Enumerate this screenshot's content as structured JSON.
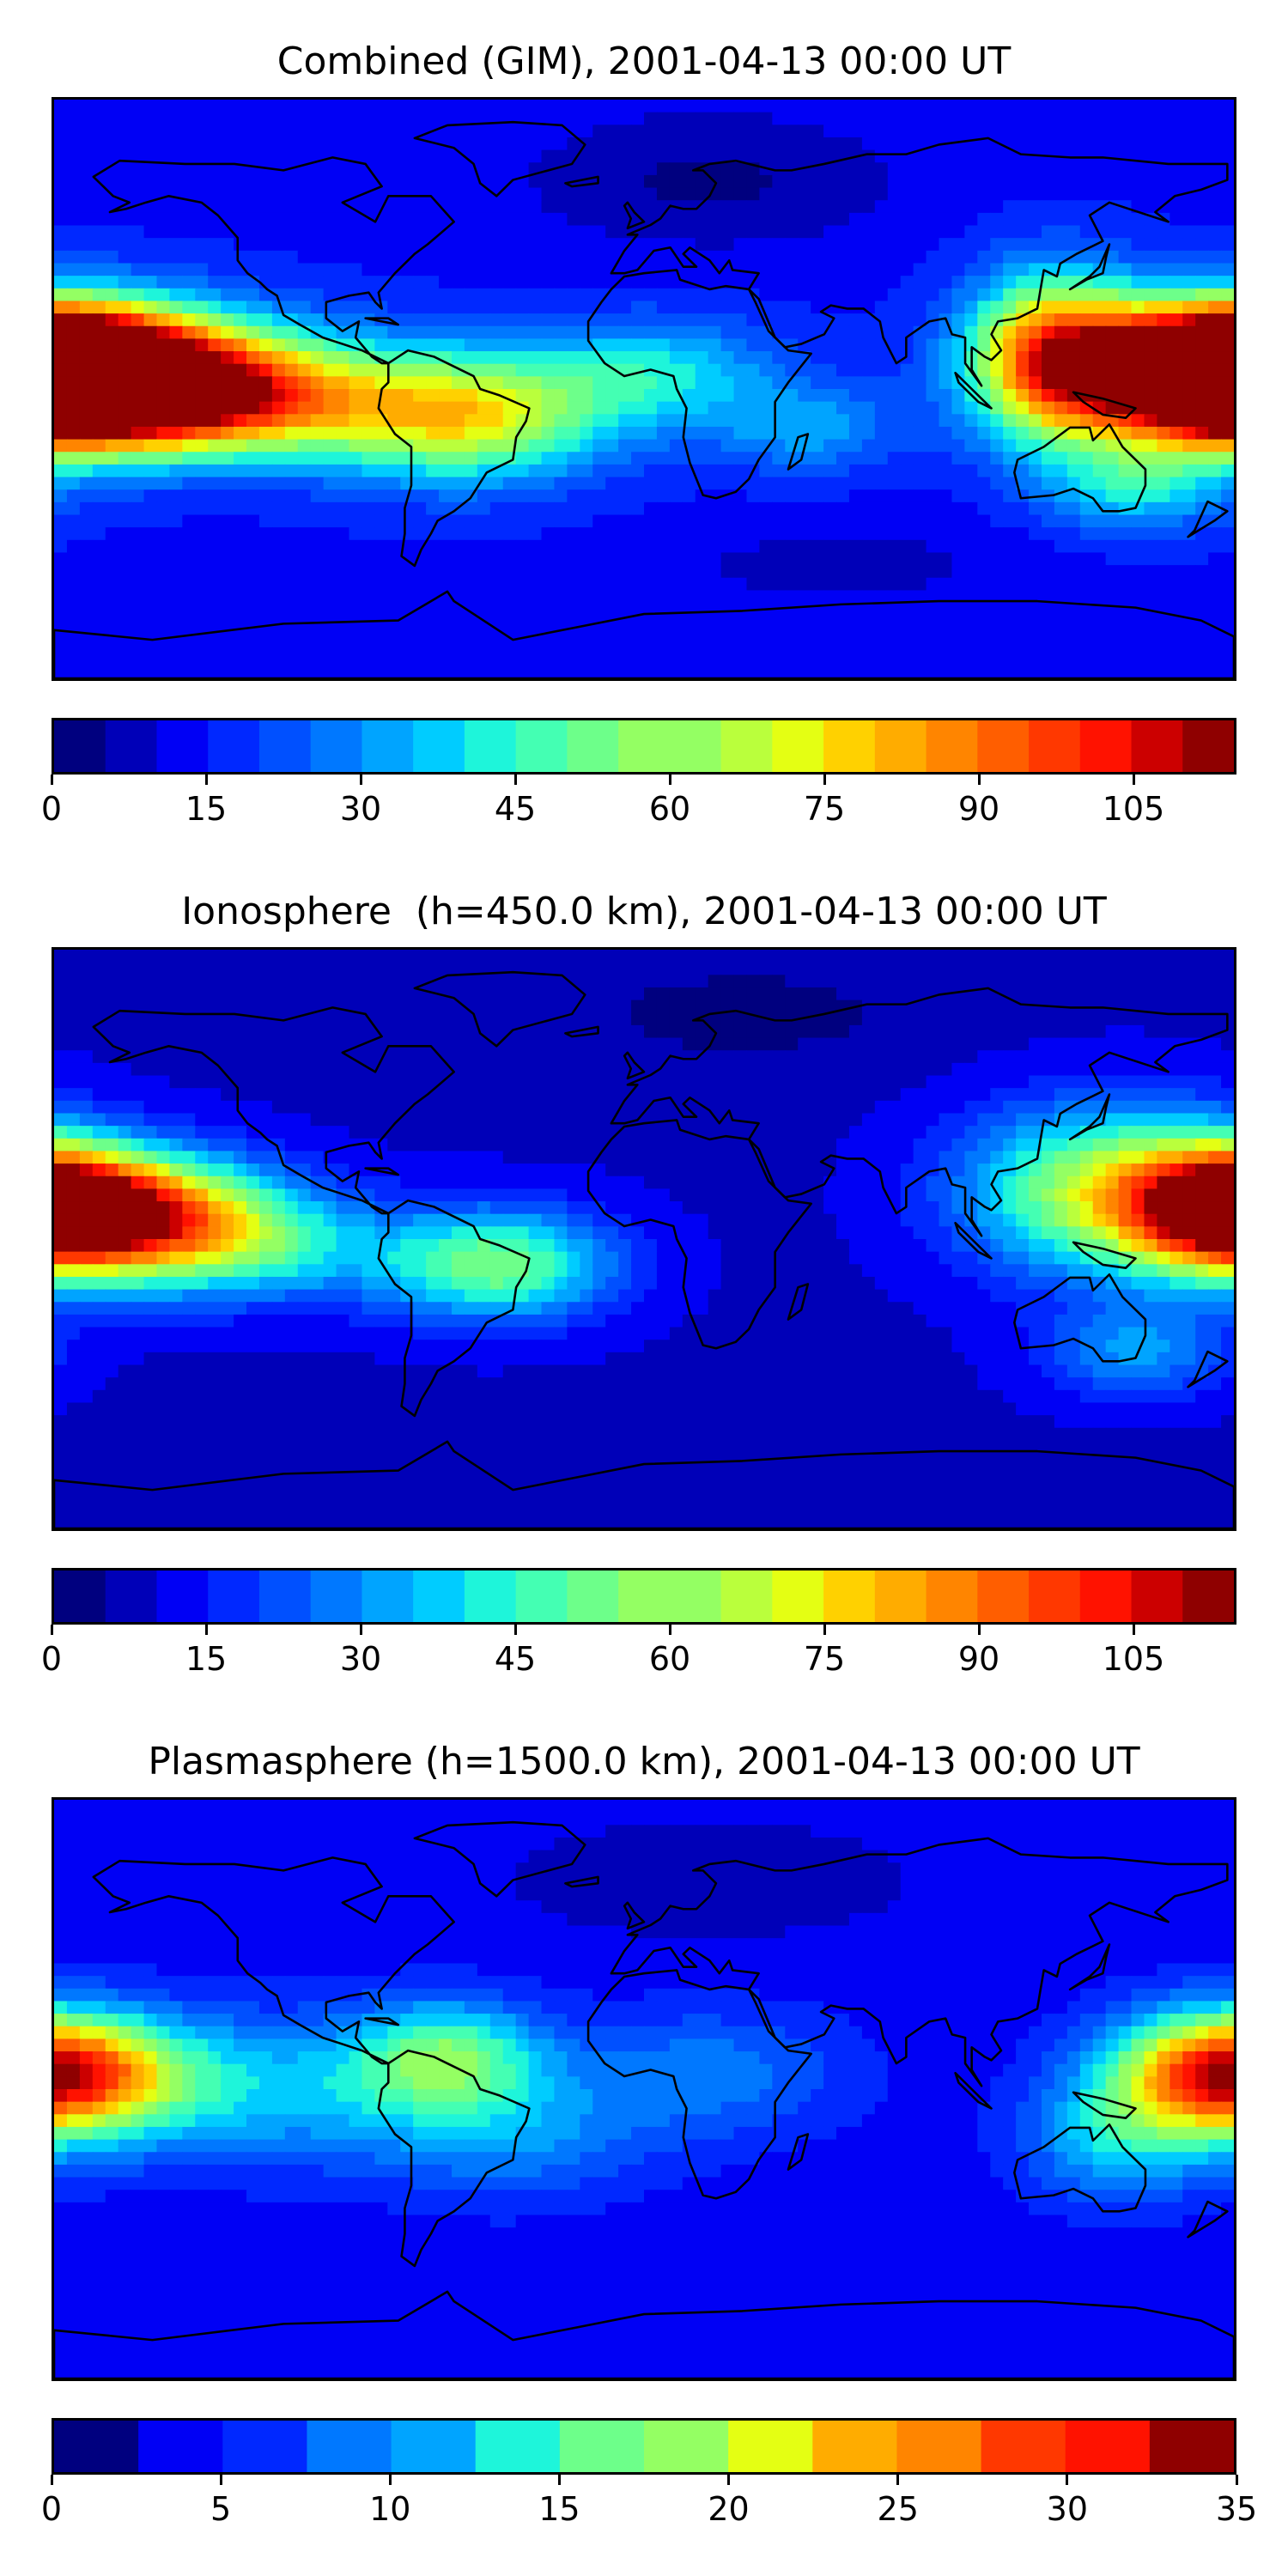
{
  "panels": [
    {
      "title": "Combined (GIM), 2001-04-13 00:00 UT",
      "colorbar": {
        "min": 0,
        "max": 115,
        "step": 5,
        "ticks": [
          "0",
          "15",
          "30",
          "45",
          "60",
          "75",
          "90",
          "105"
        ],
        "tick_values": [
          0,
          15,
          30,
          45,
          60,
          75,
          90,
          105
        ]
      },
      "field": {
        "base": 14,
        "blobs": [
          {
            "lon": -170,
            "lat": 5,
            "amp": 100,
            "slon": 40,
            "slat": 14
          },
          {
            "lon": -130,
            "lat": -4,
            "amp": 55,
            "slon": 35,
            "slat": 12
          },
          {
            "lon": -55,
            "lat": -8,
            "amp": 55,
            "slon": 30,
            "slat": 14
          },
          {
            "lon": 5,
            "lat": 5,
            "amp": 25,
            "slon": 25,
            "slat": 12
          },
          {
            "lon": 50,
            "lat": -12,
            "amp": 18,
            "slon": 20,
            "slat": 10
          },
          {
            "lon": 125,
            "lat": 10,
            "amp": 65,
            "slon": 18,
            "slat": 18
          },
          {
            "lon": 178,
            "lat": 5,
            "amp": 95,
            "slon": 25,
            "slat": 14
          },
          {
            "lon": 150,
            "lat": -30,
            "amp": 25,
            "slon": 20,
            "slat": 10
          },
          {
            "lon": 20,
            "lat": 65,
            "amp": -10,
            "slon": 40,
            "slat": 15
          },
          {
            "lon": 60,
            "lat": -55,
            "amp": -6,
            "slon": 40,
            "slat": 10
          }
        ]
      }
    },
    {
      "title": "Ionosphere  (h=450.0 km), 2001-04-13 00:00 UT",
      "colorbar": {
        "min": 0,
        "max": 115,
        "step": 5,
        "ticks": [
          "0",
          "15",
          "30",
          "45",
          "60",
          "75",
          "90",
          "105"
        ],
        "tick_values": [
          0,
          15,
          30,
          45,
          60,
          75,
          90,
          105
        ]
      },
      "field": {
        "base": 9,
        "blobs": [
          {
            "lon": -160,
            "lat": 8,
            "amp": 80,
            "slon": 30,
            "slat": 13
          },
          {
            "lon": -120,
            "lat": -2,
            "amp": 30,
            "slon": 30,
            "slat": 12
          },
          {
            "lon": -45,
            "lat": -8,
            "amp": 45,
            "slon": 25,
            "slat": 12
          },
          {
            "lon": 140,
            "lat": 15,
            "amp": 50,
            "slon": 30,
            "slat": 18
          },
          {
            "lon": 178,
            "lat": 10,
            "amp": 60,
            "slon": 20,
            "slat": 14
          },
          {
            "lon": 150,
            "lat": -35,
            "amp": 22,
            "slon": 20,
            "slat": 10
          },
          {
            "lon": 30,
            "lat": 70,
            "amp": -6,
            "slon": 40,
            "slat": 12
          }
        ]
      }
    },
    {
      "title": "Plasmasphere (h=1500.0 km), 2001-04-13 00:00 UT",
      "colorbar": {
        "min": 0,
        "max": 35,
        "step": 2.5,
        "ticks": [
          "0",
          "5",
          "10",
          "15",
          "20",
          "25",
          "30",
          "35"
        ],
        "tick_values": [
          0,
          5,
          10,
          15,
          20,
          25,
          30,
          35
        ]
      },
      "field": {
        "base": 6,
        "blobs": [
          {
            "lon": -175,
            "lat": 5,
            "amp": 22,
            "slon": 25,
            "slat": 12
          },
          {
            "lon": -120,
            "lat": 0,
            "amp": 12,
            "slon": 45,
            "slat": 16
          },
          {
            "lon": -60,
            "lat": 10,
            "amp": 18,
            "slon": 20,
            "slat": 12
          },
          {
            "lon": -40,
            "lat": -15,
            "amp": 8,
            "slon": 30,
            "slat": 14
          },
          {
            "lon": 20,
            "lat": 5,
            "amp": 8,
            "slon": 30,
            "slat": 14
          },
          {
            "lon": 175,
            "lat": 5,
            "amp": 23,
            "slon": 22,
            "slat": 14
          },
          {
            "lon": 145,
            "lat": -15,
            "amp": 12,
            "slon": 20,
            "slat": 14
          },
          {
            "lon": 20,
            "lat": 65,
            "amp": -3,
            "slon": 40,
            "slat": 12
          }
        ]
      }
    }
  ],
  "palette": [
    "#00007f",
    "#0000b8",
    "#0000f5",
    "#0028ff",
    "#0050ff",
    "#0078ff",
    "#00a4ff",
    "#00ccff",
    "#1ef5da",
    "#44ffb3",
    "#6dff8a",
    "#94ff63",
    "#baff3c",
    "#e4ff13",
    "#ffd100",
    "#ffac00",
    "#ff8500",
    "#ff5e00",
    "#ff3800",
    "#ff1200",
    "#cc0000",
    "#8f0000"
  ],
  "coastline_color": "#000000"
}
